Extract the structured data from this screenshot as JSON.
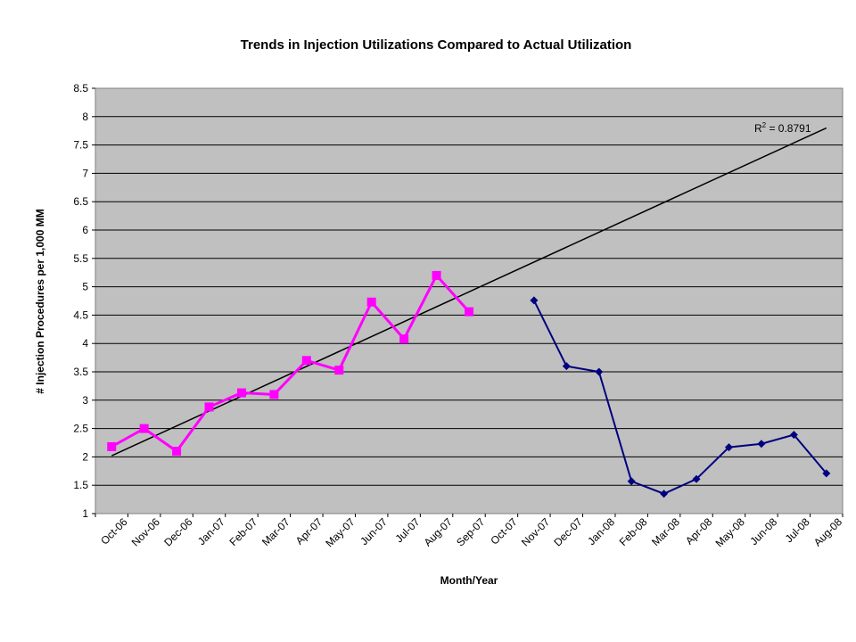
{
  "chart_data": {
    "type": "line",
    "title": "Trends in Injection Utilizations Compared to Actual Utilization",
    "xlabel": "Month/Year",
    "ylabel": "# Injection Procedures per 1,000 MM",
    "ylim": [
      1,
      8.5
    ],
    "ytick_step": 0.5,
    "yticks": [
      "1",
      "1.5",
      "2",
      "2.5",
      "3",
      "3.5",
      "4",
      "4.5",
      "5",
      "5.5",
      "6",
      "6.5",
      "7",
      "7.5",
      "8",
      "8.5"
    ],
    "grid": true,
    "plot_background": "#c0c0c0",
    "categories": [
      "Oct-06",
      "Nov-06",
      "Dec-06",
      "Jan-07",
      "Feb-07",
      "Mar-07",
      "Apr-07",
      "May-07",
      "Jun-07",
      "Jul-07",
      "Aug-07",
      "Sep-07",
      "Oct-07",
      "Nov-07",
      "Dec-07",
      "Jan-08",
      "Feb-08",
      "Mar-08",
      "Apr-08",
      "May-08",
      "Jun-08",
      "Jul-08",
      "Aug-08"
    ],
    "series": [
      {
        "color": "#ff00ff",
        "marker": "square",
        "values": [
          2.18,
          2.5,
          2.1,
          2.88,
          3.13,
          3.1,
          3.7,
          3.53,
          4.73,
          4.08,
          5.2,
          4.56,
          null,
          null,
          null,
          null,
          null,
          null,
          null,
          null,
          null,
          null,
          null
        ]
      },
      {
        "color": "#000080",
        "marker": "diamond",
        "values": [
          null,
          null,
          null,
          null,
          null,
          null,
          null,
          null,
          null,
          null,
          null,
          null,
          null,
          4.76,
          3.6,
          3.5,
          1.57,
          1.35,
          1.61,
          2.17,
          2.23,
          2.39,
          1.71
        ]
      }
    ],
    "trendline": {
      "color": "#000000",
      "start": {
        "x": "Oct-06",
        "y": 2.02
      },
      "end": {
        "x": "Aug-08",
        "y": 7.8
      },
      "r2_label": "R",
      "r2_sup": "2",
      "r2_value": " = 0.8791"
    }
  }
}
